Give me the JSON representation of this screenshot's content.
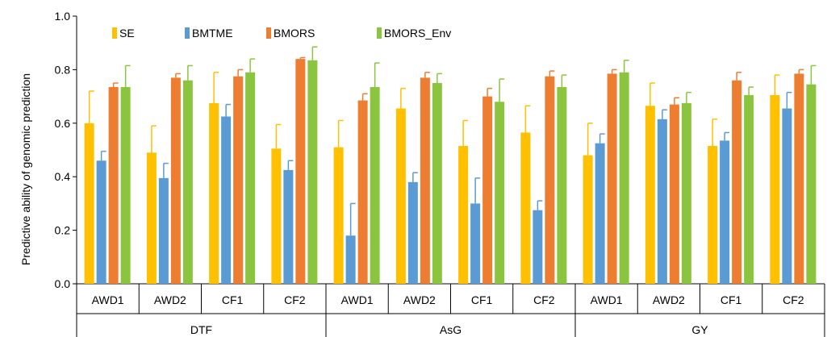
{
  "chart_data": {
    "type": "bar",
    "title": "",
    "ylabel": "Predictive ability of genomic prediction",
    "xlabel": "",
    "ylim": [
      0,
      1.0
    ],
    "yticks": [
      0.0,
      0.2,
      0.4,
      0.6,
      0.8,
      1.0
    ],
    "ytick_labels": [
      "0.0",
      "0.2",
      "0.4",
      "0.6",
      "0.8",
      "1.0"
    ],
    "grid": false,
    "legend_position": "top-left",
    "groups": [
      {
        "label": "DTF",
        "categories": [
          "AWD1",
          "AWD2",
          "CF1",
          "CF2"
        ]
      },
      {
        "label": "AsG",
        "categories": [
          "AWD1",
          "AWD2",
          "CF1",
          "CF2"
        ]
      },
      {
        "label": "GY",
        "categories": [
          "AWD1",
          "AWD2",
          "CF1",
          "CF2"
        ]
      }
    ],
    "series": [
      {
        "name": "SE",
        "color": "#FFC000",
        "values": [
          0.6,
          0.49,
          0.675,
          0.505,
          0.51,
          0.655,
          0.515,
          0.565,
          0.48,
          0.665,
          0.515,
          0.705
        ],
        "errors": [
          0.12,
          0.1,
          0.115,
          0.09,
          0.1,
          0.075,
          0.095,
          0.1,
          0.12,
          0.085,
          0.1,
          0.075
        ]
      },
      {
        "name": "BMTME",
        "color": "#5B9BD5",
        "values": [
          0.46,
          0.395,
          0.625,
          0.425,
          0.18,
          0.38,
          0.3,
          0.275,
          0.525,
          0.615,
          0.535,
          0.655
        ],
        "errors": [
          0.035,
          0.055,
          0.045,
          0.035,
          0.12,
          0.035,
          0.095,
          0.035,
          0.035,
          0.035,
          0.03,
          0.06
        ]
      },
      {
        "name": "BMORS",
        "color": "#ED7D31",
        "values": [
          0.735,
          0.77,
          0.775,
          0.84,
          0.685,
          0.77,
          0.7,
          0.775,
          0.785,
          0.67,
          0.76,
          0.785
        ],
        "errors": [
          0.015,
          0.015,
          0.025,
          0.005,
          0.025,
          0.02,
          0.03,
          0.02,
          0.015,
          0.025,
          0.03,
          0.015
        ]
      },
      {
        "name": "BMORS_Env",
        "color": "#8BC540",
        "values": [
          0.735,
          0.76,
          0.79,
          0.835,
          0.735,
          0.75,
          0.68,
          0.735,
          0.79,
          0.675,
          0.705,
          0.745
        ],
        "errors": [
          0.08,
          0.055,
          0.05,
          0.05,
          0.09,
          0.035,
          0.085,
          0.045,
          0.045,
          0.04,
          0.03,
          0.07
        ]
      }
    ]
  }
}
